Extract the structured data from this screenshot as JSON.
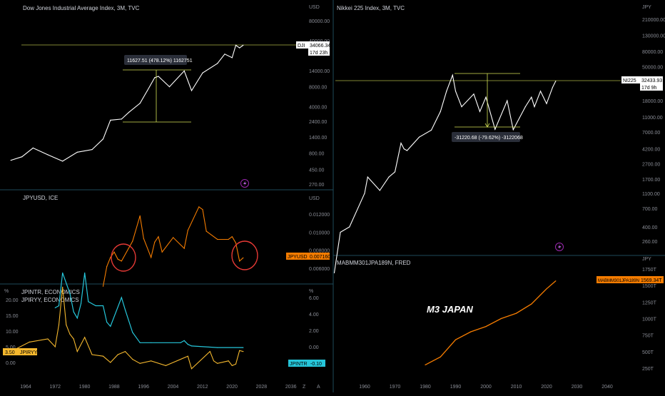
{
  "panels": {
    "dji": {
      "title": "Dow Jones Industrial Average Index, 3M, TVC",
      "currency": "USD",
      "y_ticks": [
        "80000.00",
        "40000.00",
        "14000.00",
        "8000.00",
        "4000.00",
        "2400.00",
        "1400.00",
        "800.00",
        "450.00",
        "270.00"
      ],
      "price_tag": "34066.34",
      "symbol_tag": "DJI",
      "countdown": "17d 23h",
      "measure": "11627.51 (478.12%) 1162751"
    },
    "jpyusd": {
      "title": "JPYUSD, ICE",
      "currency": "USD",
      "y_ticks": [
        "0.012000",
        "0.010000",
        "0.008000",
        "0.006000"
      ],
      "symbol_tag": "JPYUSD",
      "price_tag": "0.007160"
    },
    "rates": {
      "legend_1": "JPINTR, ECONOMICS",
      "legend_2": "JPIRYY, ECONOMICS",
      "left_unit": "%",
      "right_unit": "%",
      "left_ticks": [
        "20.00",
        "15.00",
        "10.00",
        "5.00",
        "0.00"
      ],
      "right_ticks": [
        "6.00",
        "4.00",
        "2.00",
        "0.00",
        "-2.00"
      ],
      "tag_left_value": "3.50",
      "tag_left_symbol": "JPIRYY",
      "tag_right_symbol": "JPINTR",
      "tag_right_value": "-0.10",
      "x_ticks": [
        "1964",
        "1972",
        "1980",
        "1988",
        "1996",
        "2004",
        "2012",
        "2020",
        "2028",
        "2036"
      ],
      "corner_z": "Z",
      "corner_a": "A"
    },
    "nikkei": {
      "title": "Nikkei 225 Index, 3M, TVC",
      "currency": "JPY",
      "y_ticks": [
        "210000.00",
        "130000.00",
        "80000.00",
        "50000.00",
        "30000.00",
        "18000.00",
        "11000.00",
        "7000.00",
        "4200.00",
        "2700.00",
        "1700.00",
        "1100.00",
        "700.00",
        "400.00",
        "260.00"
      ],
      "symbol_tag": "NI225",
      "price_tag": "32433.93",
      "countdown": "17d 9h",
      "measure": "-31220.68 (-79.62%) -3122068"
    },
    "m3": {
      "title": "MABMM301JPA189N, FRED",
      "currency": "JPY",
      "y_ticks": [
        "1750T",
        "1500T",
        "1250T",
        "1000T",
        "750T",
        "500T",
        "250T"
      ],
      "tag_symbol": "MABMM301JPA189N",
      "tag_value": "1569.34T",
      "annotation": "M3 JAPAN",
      "x_ticks": [
        "1960",
        "1970",
        "1980",
        "1990",
        "2000",
        "2010",
        "2020",
        "2030",
        "2040"
      ]
    }
  },
  "colors": {
    "background": "#000000",
    "price_line": "#ffffff",
    "jpyusd": "#f57c00",
    "jpintr": "#26c6da",
    "jpiryy": "#f5b82e",
    "m3": "#f57c00",
    "measure": "#d4e157",
    "circle": "#e53935",
    "divider": "#1e4a5a",
    "lightning": "#9c27b0"
  },
  "chart_data": [
    {
      "type": "line",
      "title": "Dow Jones Industrial Average Index, 3M, TVC",
      "ylabel": "USD",
      "scale": "log",
      "ylim": [
        270,
        80000
      ],
      "series": [
        {
          "name": "DJI",
          "x": [
            1960,
            1963,
            1966,
            1970,
            1974,
            1978,
            1982,
            1985,
            1987,
            1990,
            1992,
            1995,
            1997,
            1999,
            2000,
            2003,
            2007,
            2009,
            2012,
            2016,
            2018,
            2020,
            2021,
            2022,
            2023
          ],
          "values": [
            620,
            700,
            950,
            750,
            600,
            820,
            900,
            1300,
            2500,
            2600,
            3300,
            4500,
            7000,
            11000,
            11500,
            8000,
            13900,
            7000,
            13000,
            18000,
            25000,
            22000,
            34000,
            31000,
            34066
          ]
        }
      ]
    },
    {
      "type": "line",
      "title": "JPYUSD, ICE",
      "ylabel": "USD",
      "ylim": [
        0.0055,
        0.0135
      ],
      "series": [
        {
          "name": "JPYUSD",
          "x": [
            1985,
            1986,
            1987,
            1988,
            1989,
            1990,
            1993,
            1995,
            1996,
            1998,
            1999,
            2000,
            2001,
            2004,
            2007,
            2008,
            2011,
            2012,
            2013,
            2016,
            2019,
            2020,
            2021,
            2022,
            2023
          ],
          "values": [
            0.004,
            0.0062,
            0.0072,
            0.0078,
            0.007,
            0.0068,
            0.009,
            0.0118,
            0.0093,
            0.0072,
            0.0089,
            0.0095,
            0.0078,
            0.0094,
            0.0082,
            0.0102,
            0.0128,
            0.0125,
            0.0101,
            0.0092,
            0.0092,
            0.0095,
            0.0088,
            0.0068,
            0.00716
          ]
        }
      ]
    },
    {
      "type": "line",
      "series": [
        {
          "name": "JPINTR",
          "x": [
            1972,
            1973,
            1974,
            1976,
            1977,
            1978,
            1979,
            1980,
            1981,
            1983,
            1985,
            1986,
            1987,
            1990,
            1991,
            1993,
            1995,
            1998,
            2006,
            2007,
            2008,
            2009,
            2016,
            2023
          ],
          "values": [
            4.75,
            5.0,
            9.0,
            6.5,
            4.25,
            3.5,
            5.25,
            9.0,
            5.5,
            5.0,
            5.0,
            3.0,
            2.5,
            6.0,
            4.5,
            1.75,
            0.5,
            0.5,
            0.5,
            0.75,
            0.3,
            0.1,
            -0.1,
            -0.1
          ]
        },
        {
          "name": "JPIRYY",
          "x": [
            1960,
            1965,
            1970,
            1972,
            1973,
            1974,
            1975,
            1976,
            1977,
            1978,
            1980,
            1982,
            1985,
            1987,
            1989,
            1991,
            1993,
            1995,
            1998,
            2002,
            2008,
            2009,
            2014,
            2015,
            2016,
            2019,
            2020,
            2021,
            2022,
            2023
          ],
          "values": [
            3.5,
            6.5,
            7.5,
            5.0,
            12.0,
            24.0,
            12.0,
            9.0,
            7.5,
            3.5,
            8.0,
            2.5,
            2.0,
            0.0,
            2.5,
            3.5,
            1.0,
            -0.3,
            0.5,
            -1.0,
            2.0,
            -2.0,
            3.5,
            0.5,
            -0.3,
            0.5,
            -1.0,
            -0.5,
            3.8,
            3.5
          ]
        }
      ],
      "ylim_left": [
        -1,
        24
      ],
      "ylim_right": [
        -2,
        9
      ]
    },
    {
      "type": "line",
      "title": "Nikkei 225 Index, 3M, TVC",
      "ylabel": "JPY",
      "scale": "log",
      "ylim": [
        200,
        260000
      ],
      "series": [
        {
          "name": "NI225",
          "x": [
            1950,
            1952,
            1955,
            1960,
            1961,
            1965,
            1968,
            1970,
            1972,
            1973,
            1974,
            1978,
            1982,
            1985,
            1987,
            1989,
            1990,
            1992,
            1996,
            1998,
            2000,
            2003,
            2007,
            2009,
            2013,
            2015,
            2016,
            2018,
            2020,
            2022,
            2023
          ],
          "values": [
            100,
            340,
            400,
            1100,
            1800,
            1200,
            1800,
            2100,
            5000,
            4200,
            4000,
            6000,
            7400,
            13000,
            24000,
            38900,
            24000,
            15000,
            22000,
            13000,
            20000,
            7600,
            18000,
            7500,
            15000,
            20000,
            15000,
            24000,
            16500,
            27000,
            32433
          ]
        }
      ]
    },
    {
      "type": "line",
      "title": "MABMM301JPA189N, FRED",
      "ylabel": "JPY",
      "ylim": [
        200,
        1800
      ],
      "series": [
        {
          "name": "MABMM301JPA189N",
          "x": [
            1980,
            1985,
            1990,
            1995,
            2000,
            2005,
            2010,
            2015,
            2020,
            2023
          ],
          "values": [
            300,
            420,
            680,
            800,
            880,
            1000,
            1080,
            1220,
            1450,
            1569.34
          ]
        }
      ]
    }
  ]
}
